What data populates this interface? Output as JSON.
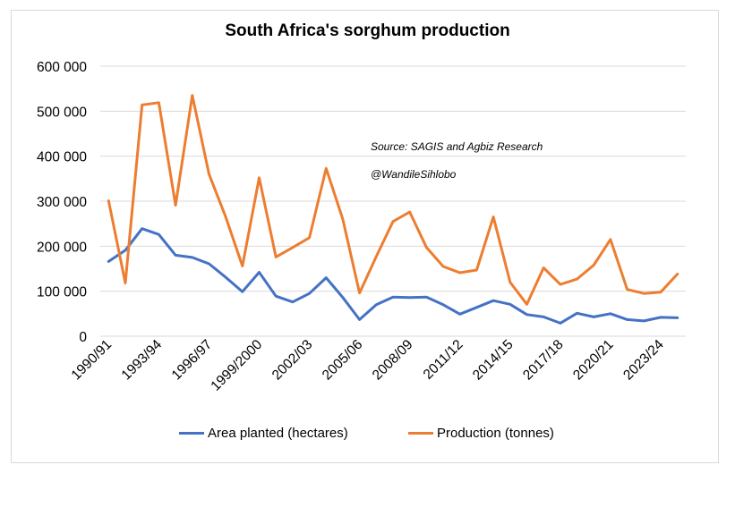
{
  "chart_data": {
    "type": "line",
    "title": "South Africa's sorghum production",
    "annotations": [
      "Source: SAGIS and Agbiz Research",
      "@WandileSihlobo"
    ],
    "xlabel": "",
    "ylabel": "",
    "ylim": [
      0,
      600000
    ],
    "yticks": [
      "0",
      "100 000",
      "200 000",
      "300 000",
      "400 000",
      "500 000",
      "600 000"
    ],
    "yticks_values": [
      0,
      100000,
      200000,
      300000,
      400000,
      500000,
      600000
    ],
    "grid": true,
    "legend": "bottom",
    "x": [
      "1990/91",
      "1991/92",
      "1992/93",
      "1993/94",
      "1994/95",
      "1995/96",
      "1996/97",
      "1997/98",
      "1998/99",
      "1999/2000",
      "2000/01",
      "2001/02",
      "2002/03",
      "2003/04",
      "2004/05",
      "2005/06",
      "2006/07",
      "2007/08",
      "2008/09",
      "2009/10",
      "2010/11",
      "2011/12",
      "2012/13",
      "2013/14",
      "2014/15",
      "2015/16",
      "2016/17",
      "2017/18",
      "2018/19",
      "2019/20",
      "2020/21",
      "2021/22",
      "2022/23",
      "2023/24",
      "2024/25"
    ],
    "xtick_labels": [
      "1990/91",
      "1993/94",
      "1996/97",
      "1999/2000",
      "2002/03",
      "2005/06",
      "2008/09",
      "2011/12",
      "2014/15",
      "2017/18",
      "2020/21",
      "2023/24"
    ],
    "series": [
      {
        "name": "Area planted (hectares)",
        "color": "#4472C4",
        "values": [
          166000,
          191000,
          239000,
          226000,
          180000,
          175000,
          161000,
          131000,
          99000,
          142000,
          89000,
          76000,
          95000,
          130000,
          86000,
          37000,
          70000,
          87000,
          86000,
          87000,
          70000,
          49000,
          64000,
          79000,
          71000,
          48000,
          43000,
          29000,
          51000,
          43000,
          50000,
          37000,
          34000,
          42000,
          41000
        ]
      },
      {
        "name": "Production (tonnes)",
        "color": "#ED7D31",
        "values": [
          301000,
          118000,
          514000,
          519000,
          291000,
          535000,
          360000,
          265000,
          156000,
          352000,
          176000,
          197000,
          219000,
          373000,
          260000,
          96000,
          177000,
          255000,
          276000,
          197000,
          155000,
          141000,
          147000,
          265000,
          120000,
          71000,
          152000,
          115000,
          127000,
          158000,
          215000,
          104000,
          95000,
          98000,
          138000
        ]
      }
    ]
  }
}
